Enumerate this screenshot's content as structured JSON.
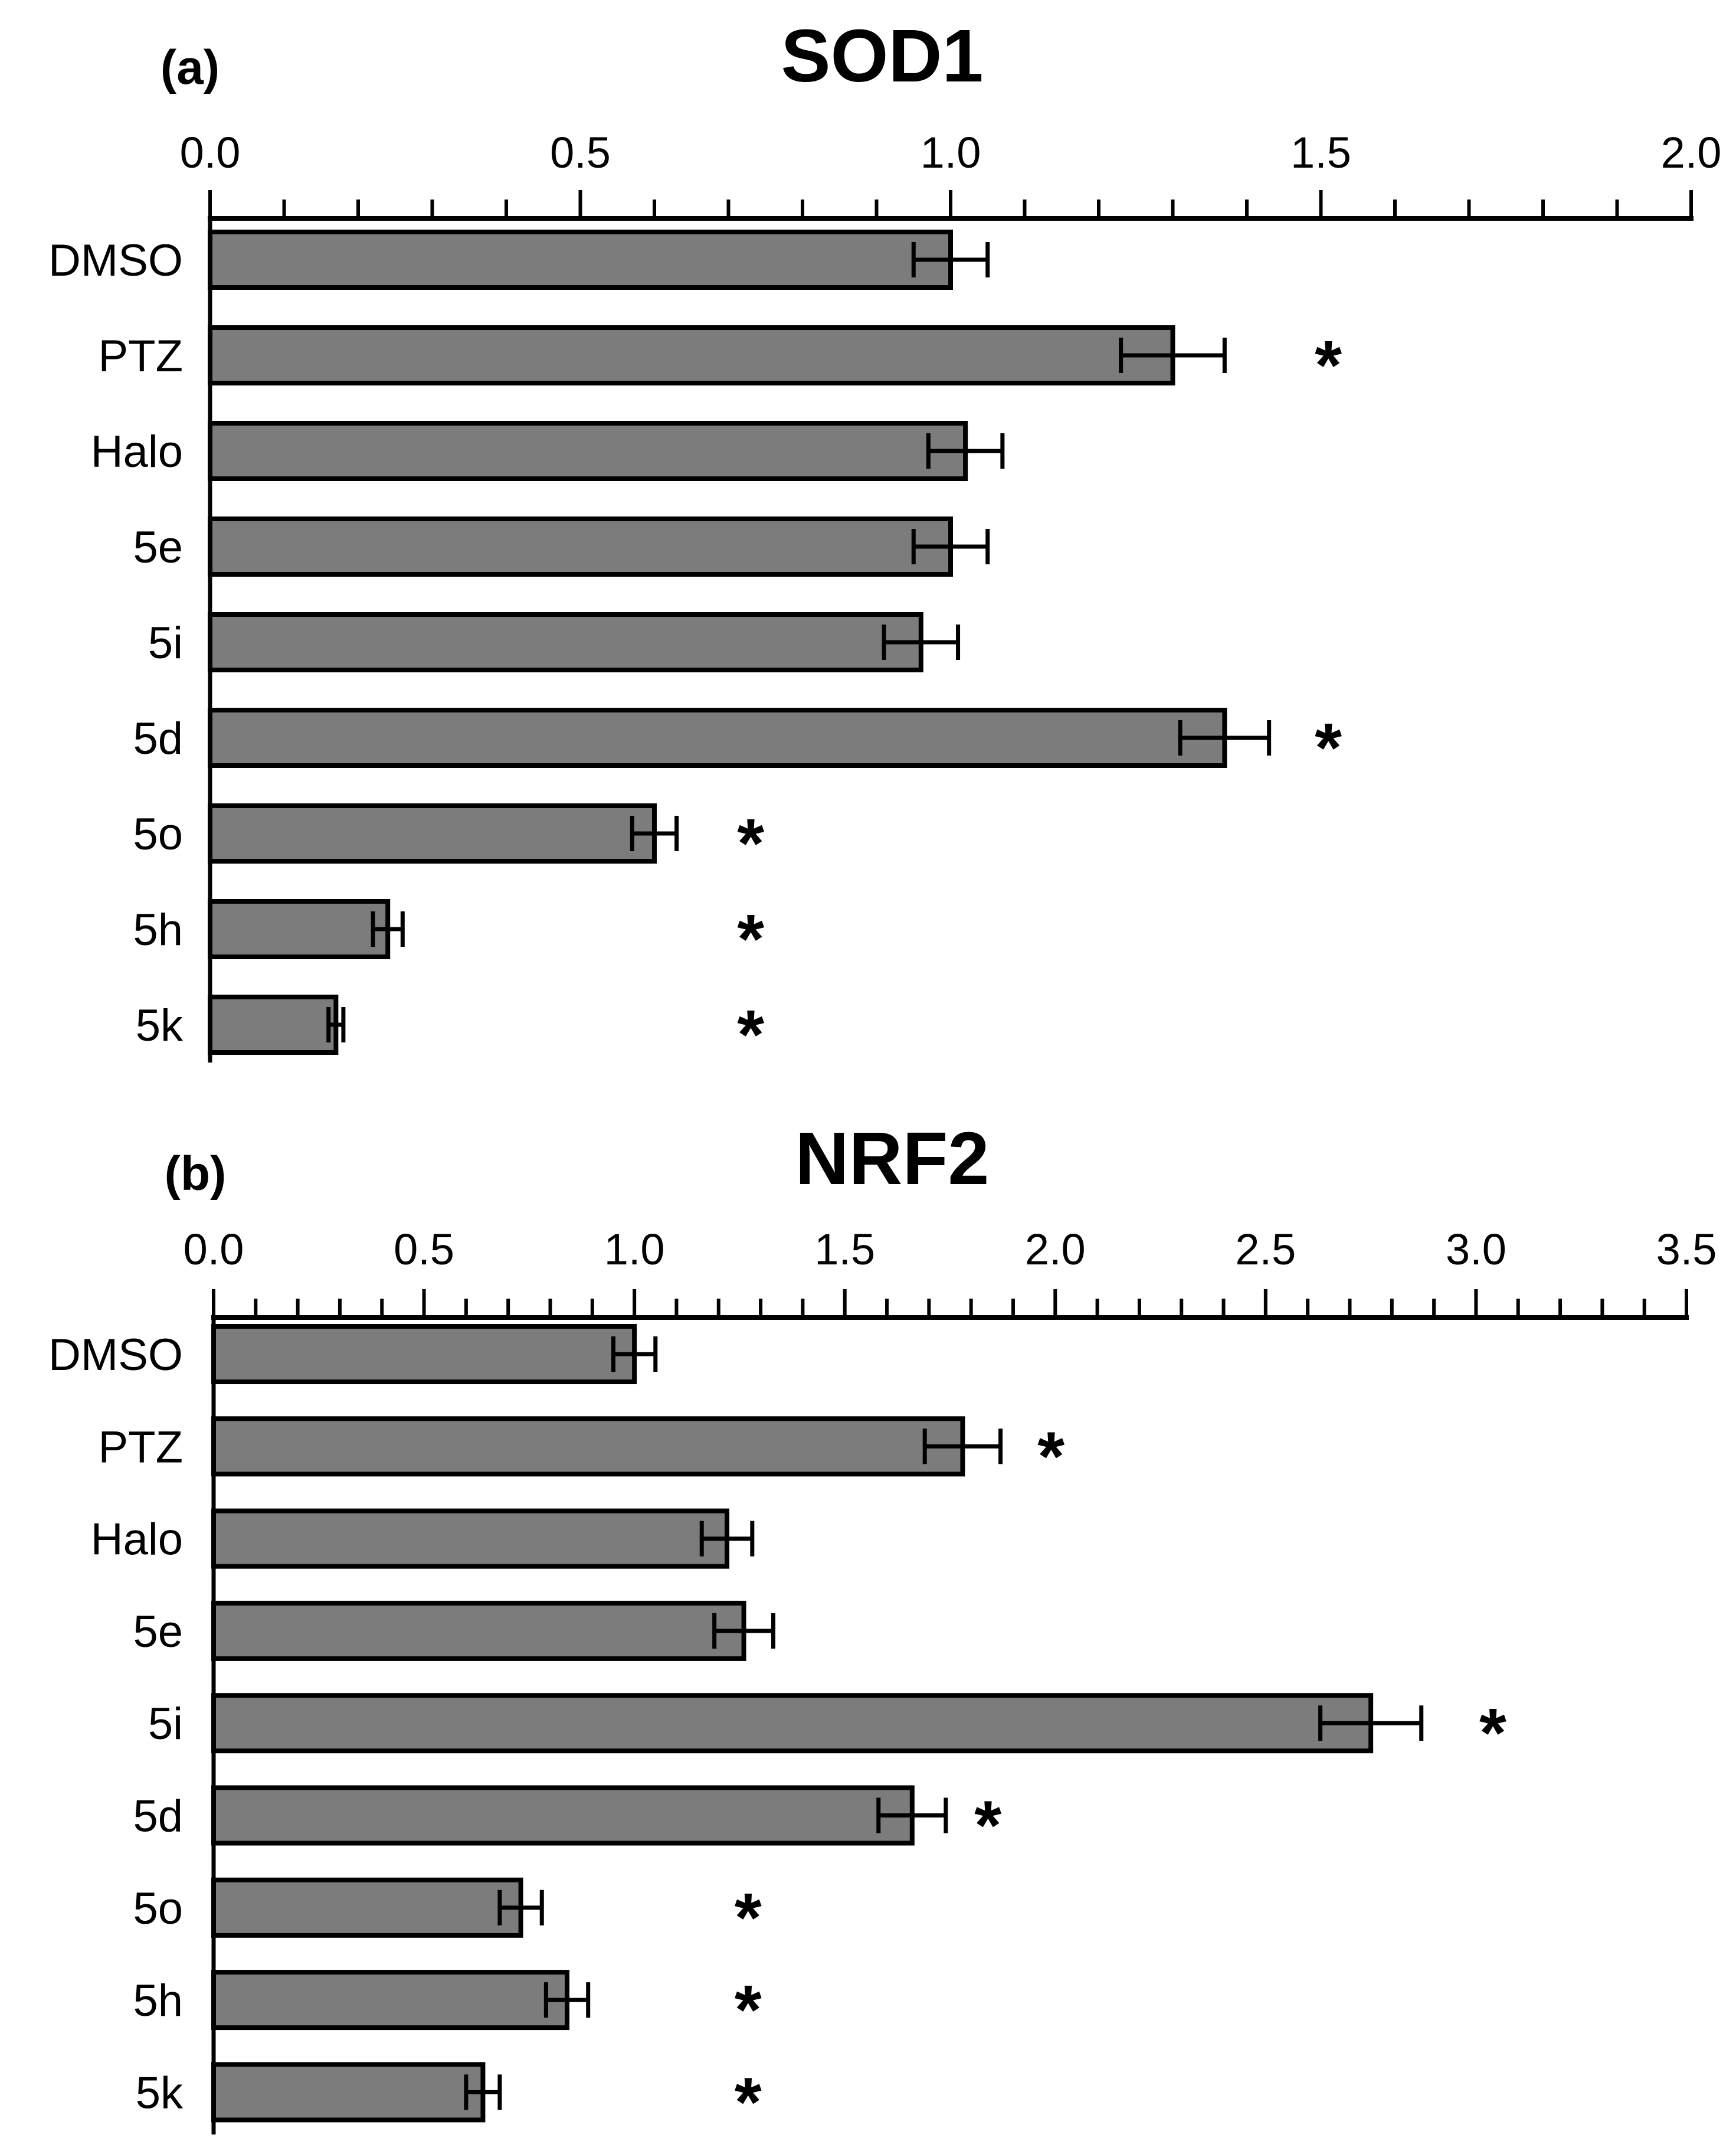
{
  "figure": {
    "background": "#ffffff",
    "bar_fill": "#7c7c7c",
    "line_color": "#000000",
    "star_symbol": "*"
  },
  "chart_data": [
    {
      "type": "bar",
      "orientation": "horizontal",
      "panel_label": "(a)",
      "title": "SOD1",
      "categories": [
        "DMSO",
        "PTZ",
        "Halo",
        "5e",
        "5i",
        "5d",
        "5o",
        "5h",
        "5k"
      ],
      "values": [
        1.0,
        1.3,
        1.02,
        1.0,
        0.96,
        1.37,
        0.6,
        0.24,
        0.17
      ],
      "errors": [
        0.05,
        0.07,
        0.05,
        0.05,
        0.05,
        0.06,
        0.03,
        0.02,
        0.01
      ],
      "significance_star_x": [
        null,
        1.51,
        null,
        null,
        null,
        1.51,
        0.73,
        0.73,
        0.73
      ],
      "xlim": [
        0,
        2.0
      ],
      "x_major_step": 0.5,
      "x_minor_step": 0.1,
      "tick_labels": [
        "0.0",
        "0.5",
        "1.0",
        "1.5",
        "2.0"
      ],
      "grid": false,
      "legend": null
    },
    {
      "type": "bar",
      "orientation": "horizontal",
      "panel_label": "(b)",
      "title": "NRF2",
      "categories": [
        "DMSO",
        "PTZ",
        "Halo",
        "5e",
        "5i",
        "5d",
        "5o",
        "5h",
        "5k"
      ],
      "values": [
        1.0,
        1.78,
        1.22,
        1.26,
        2.75,
        1.66,
        0.73,
        0.84,
        0.64
      ],
      "errors": [
        0.05,
        0.09,
        0.06,
        0.07,
        0.12,
        0.08,
        0.05,
        0.05,
        0.04
      ],
      "significance_star_x": [
        null,
        1.99,
        null,
        null,
        3.04,
        1.84,
        1.27,
        1.27,
        1.27
      ],
      "xlim": [
        0,
        3.5
      ],
      "x_major_step": 0.5,
      "x_minor_step": 0.1,
      "tick_labels": [
        "0.0",
        "0.5",
        "1.0",
        "1.5",
        "2.0",
        "2.5",
        "3.0",
        "3.5"
      ],
      "grid": false,
      "legend": null
    }
  ]
}
